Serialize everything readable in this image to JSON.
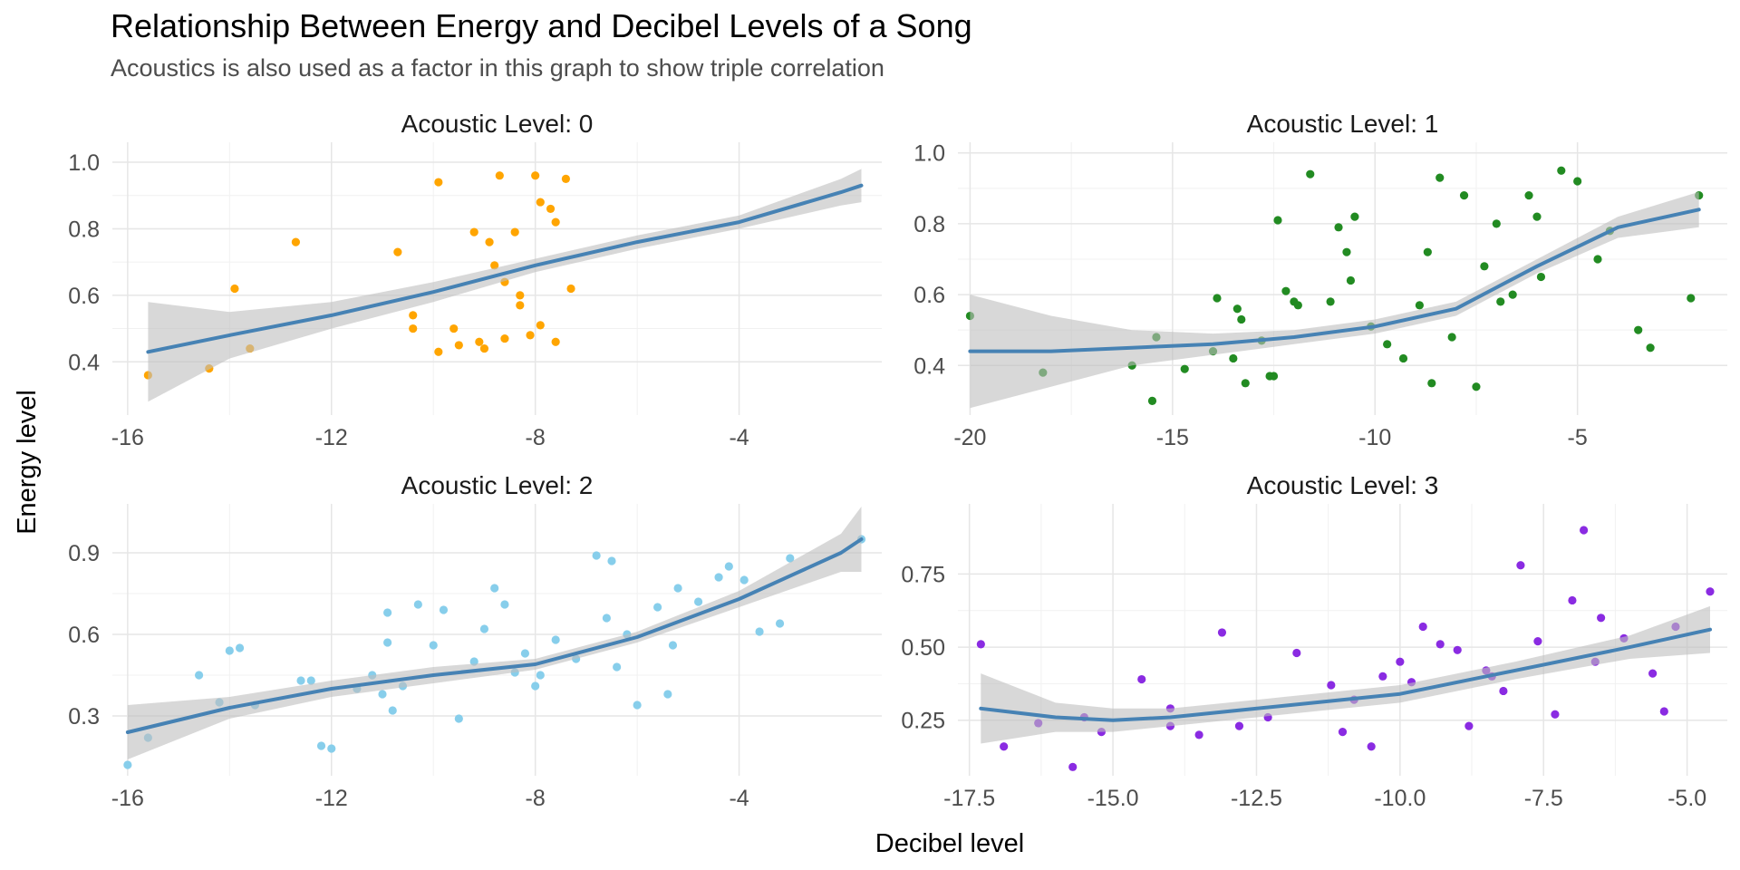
{
  "chart_data": {
    "type": "scatter",
    "title": "Relationship Between Energy and Decibel Levels of a Song",
    "subtitle": "Acoustics is also used as a factor in this graph to show triple correlation",
    "xlabel": "Decibel level",
    "ylabel": "Energy level",
    "grid": true,
    "smoother": {
      "color": "#4682b4",
      "band_color": "#bebebe"
    },
    "panels": [
      {
        "label": "Acoustic Level: 0",
        "color": "#ffa500",
        "xlim": [
          -16.3,
          -1.2
        ],
        "ylim": [
          0.24,
          1.06
        ],
        "xticks": [
          -16,
          -12,
          -8,
          -4
        ],
        "xtick_labels": [
          "-16",
          "-12",
          "-8",
          "-4"
        ],
        "yticks": [
          0.4,
          0.6,
          0.8,
          1.0
        ],
        "ytick_labels": [
          "0.4",
          "0.6",
          "0.8",
          "1.0"
        ],
        "points": [
          [
            -15.6,
            0.36
          ],
          [
            -14.4,
            0.38
          ],
          [
            -13.6,
            0.44
          ],
          [
            -13.9,
            0.62
          ],
          [
            -12.7,
            0.76
          ],
          [
            -10.7,
            0.73
          ],
          [
            -10.4,
            0.54
          ],
          [
            -10.4,
            0.5
          ],
          [
            -9.9,
            0.94
          ],
          [
            -9.9,
            0.43
          ],
          [
            -9.2,
            0.79
          ],
          [
            -9.5,
            0.45
          ],
          [
            -9.6,
            0.5
          ],
          [
            -9.1,
            0.46
          ],
          [
            -9.0,
            0.44
          ],
          [
            -8.8,
            0.69
          ],
          [
            -8.6,
            0.47
          ],
          [
            -8.4,
            0.79
          ],
          [
            -8.3,
            0.57
          ],
          [
            -8.1,
            0.48
          ],
          [
            -7.9,
            0.88
          ],
          [
            -7.6,
            0.46
          ],
          [
            -7.9,
            0.51
          ],
          [
            -8.7,
            0.96
          ],
          [
            -8.0,
            0.96
          ],
          [
            -7.4,
            0.95
          ],
          [
            -7.7,
            0.86
          ],
          [
            -7.6,
            0.82
          ],
          [
            -7.3,
            0.62
          ],
          [
            -8.6,
            0.64
          ],
          [
            -8.3,
            0.6
          ],
          [
            -8.9,
            0.76
          ]
        ],
        "smooth": [
          [
            -15.6,
            0.43
          ],
          [
            -14,
            0.48
          ],
          [
            -12,
            0.54
          ],
          [
            -10,
            0.61
          ],
          [
            -8,
            0.69
          ],
          [
            -6,
            0.76
          ],
          [
            -4,
            0.82
          ],
          [
            -2,
            0.91
          ],
          [
            -1.6,
            0.93
          ]
        ],
        "band_half_width": [
          0.15,
          0.07,
          0.04,
          0.03,
          0.02,
          0.02,
          0.02,
          0.04,
          0.05
        ]
      },
      {
        "label": "Acoustic Level: 1",
        "color": "#228b22",
        "xlim": [
          -20.3,
          -1.3
        ],
        "ylim": [
          0.26,
          1.03
        ],
        "xticks": [
          -20,
          -15,
          -10,
          -5
        ],
        "xtick_labels": [
          "-20",
          "-15",
          "-10",
          "-5"
        ],
        "yticks": [
          0.4,
          0.6,
          0.8,
          1.0
        ],
        "ytick_labels": [
          "0.4",
          "0.6",
          "0.8",
          "1.0"
        ],
        "points": [
          [
            -20.0,
            0.54
          ],
          [
            -18.2,
            0.38
          ],
          [
            -16.0,
            0.4
          ],
          [
            -15.5,
            0.3
          ],
          [
            -15.4,
            0.48
          ],
          [
            -14.7,
            0.39
          ],
          [
            -14.0,
            0.44
          ],
          [
            -13.9,
            0.59
          ],
          [
            -13.5,
            0.42
          ],
          [
            -13.4,
            0.56
          ],
          [
            -13.3,
            0.53
          ],
          [
            -13.2,
            0.35
          ],
          [
            -12.8,
            0.47
          ],
          [
            -12.6,
            0.37
          ],
          [
            -12.5,
            0.37
          ],
          [
            -12.4,
            0.81
          ],
          [
            -12.2,
            0.61
          ],
          [
            -12.0,
            0.58
          ],
          [
            -11.9,
            0.57
          ],
          [
            -11.6,
            0.94
          ],
          [
            -11.1,
            0.58
          ],
          [
            -10.9,
            0.79
          ],
          [
            -10.7,
            0.72
          ],
          [
            -10.6,
            0.64
          ],
          [
            -10.5,
            0.82
          ],
          [
            -10.1,
            0.51
          ],
          [
            -9.7,
            0.46
          ],
          [
            -9.3,
            0.42
          ],
          [
            -8.9,
            0.57
          ],
          [
            -8.7,
            0.72
          ],
          [
            -8.6,
            0.35
          ],
          [
            -8.4,
            0.93
          ],
          [
            -7.8,
            0.88
          ],
          [
            -7.5,
            0.34
          ],
          [
            -7.0,
            0.8
          ],
          [
            -6.6,
            0.6
          ],
          [
            -6.2,
            0.88
          ],
          [
            -5.9,
            0.65
          ],
          [
            -5.4,
            0.95
          ],
          [
            -5.0,
            0.92
          ],
          [
            -4.5,
            0.7
          ],
          [
            -3.5,
            0.5
          ],
          [
            -3.2,
            0.45
          ],
          [
            -2.2,
            0.59
          ],
          [
            -2.0,
            0.88
          ],
          [
            -6.9,
            0.58
          ],
          [
            -7.3,
            0.68
          ],
          [
            -8.1,
            0.48
          ],
          [
            -6.0,
            0.82
          ],
          [
            -4.2,
            0.78
          ]
        ],
        "smooth": [
          [
            -20,
            0.44
          ],
          [
            -18,
            0.44
          ],
          [
            -16,
            0.45
          ],
          [
            -14,
            0.46
          ],
          [
            -12,
            0.48
          ],
          [
            -10,
            0.51
          ],
          [
            -8,
            0.56
          ],
          [
            -6,
            0.68
          ],
          [
            -4,
            0.79
          ],
          [
            -2,
            0.84
          ]
        ],
        "band_half_width": [
          0.16,
          0.1,
          0.05,
          0.03,
          0.02,
          0.02,
          0.02,
          0.02,
          0.03,
          0.05
        ]
      },
      {
        "label": "Acoustic Level: 2",
        "color": "#87ceeb",
        "xlim": [
          -16.3,
          -1.2
        ],
        "ylim": [
          0.08,
          1.08
        ],
        "xticks": [
          -16,
          -12,
          -8,
          -4
        ],
        "xtick_labels": [
          "-16",
          "-12",
          "-8",
          "-4"
        ],
        "yticks": [
          0.3,
          0.6,
          0.9
        ],
        "ytick_labels": [
          "0.3",
          "0.6",
          "0.9"
        ],
        "points": [
          [
            -16.0,
            0.12
          ],
          [
            -15.6,
            0.22
          ],
          [
            -14.6,
            0.45
          ],
          [
            -14.2,
            0.35
          ],
          [
            -14.0,
            0.54
          ],
          [
            -13.8,
            0.55
          ],
          [
            -13.5,
            0.34
          ],
          [
            -12.6,
            0.43
          ],
          [
            -12.4,
            0.43
          ],
          [
            -12.2,
            0.19
          ],
          [
            -12.0,
            0.18
          ],
          [
            -11.5,
            0.4
          ],
          [
            -11.2,
            0.45
          ],
          [
            -10.9,
            0.57
          ],
          [
            -10.9,
            0.68
          ],
          [
            -10.8,
            0.32
          ],
          [
            -10.6,
            0.41
          ],
          [
            -10.3,
            0.71
          ],
          [
            -10.0,
            0.56
          ],
          [
            -9.8,
            0.69
          ],
          [
            -9.5,
            0.29
          ],
          [
            -9.0,
            0.62
          ],
          [
            -8.8,
            0.77
          ],
          [
            -8.6,
            0.71
          ],
          [
            -8.4,
            0.46
          ],
          [
            -8.2,
            0.53
          ],
          [
            -8.0,
            0.41
          ],
          [
            -7.6,
            0.58
          ],
          [
            -7.2,
            0.51
          ],
          [
            -6.8,
            0.89
          ],
          [
            -6.6,
            0.66
          ],
          [
            -6.5,
            0.87
          ],
          [
            -6.2,
            0.6
          ],
          [
            -6.0,
            0.34
          ],
          [
            -5.6,
            0.7
          ],
          [
            -5.4,
            0.38
          ],
          [
            -5.2,
            0.77
          ],
          [
            -4.8,
            0.72
          ],
          [
            -4.4,
            0.81
          ],
          [
            -4.2,
            0.85
          ],
          [
            -3.9,
            0.8
          ],
          [
            -3.6,
            0.61
          ],
          [
            -3.2,
            0.64
          ],
          [
            -3.0,
            0.88
          ],
          [
            -1.6,
            0.95
          ],
          [
            -9.2,
            0.5
          ],
          [
            -7.9,
            0.45
          ],
          [
            -6.4,
            0.48
          ],
          [
            -5.3,
            0.56
          ],
          [
            -11.0,
            0.38
          ]
        ],
        "smooth": [
          [
            -16,
            0.24
          ],
          [
            -14,
            0.33
          ],
          [
            -12,
            0.4
          ],
          [
            -10,
            0.45
          ],
          [
            -8,
            0.49
          ],
          [
            -6,
            0.59
          ],
          [
            -4,
            0.73
          ],
          [
            -2,
            0.9
          ],
          [
            -1.6,
            0.95
          ]
        ],
        "band_half_width": [
          0.1,
          0.04,
          0.03,
          0.03,
          0.02,
          0.02,
          0.03,
          0.07,
          0.12
        ]
      },
      {
        "label": "Acoustic Level: 3",
        "color": "#8a2be2",
        "xlim": [
          -17.7,
          -4.3
        ],
        "ylim": [
          0.06,
          0.99
        ],
        "xticks": [
          -17.5,
          -15.0,
          -12.5,
          -10.0,
          -7.5,
          -5.0
        ],
        "xtick_labels": [
          "-17.5",
          "-15.0",
          "-12.5",
          "-10.0",
          "-7.5",
          "-5.0"
        ],
        "yticks": [
          0.25,
          0.5,
          0.75
        ],
        "ytick_labels": [
          "0.25",
          "0.50",
          "0.75"
        ],
        "points": [
          [
            -17.3,
            0.51
          ],
          [
            -16.9,
            0.16
          ],
          [
            -16.3,
            0.24
          ],
          [
            -15.7,
            0.09
          ],
          [
            -15.5,
            0.26
          ],
          [
            -15.2,
            0.21
          ],
          [
            -14.5,
            0.39
          ],
          [
            -14.0,
            0.29
          ],
          [
            -14.0,
            0.23
          ],
          [
            -13.5,
            0.2
          ],
          [
            -13.1,
            0.55
          ],
          [
            -12.8,
            0.23
          ],
          [
            -12.3,
            0.26
          ],
          [
            -11.8,
            0.48
          ],
          [
            -11.2,
            0.37
          ],
          [
            -11.0,
            0.21
          ],
          [
            -10.8,
            0.32
          ],
          [
            -10.5,
            0.16
          ],
          [
            -10.3,
            0.4
          ],
          [
            -10.0,
            0.45
          ],
          [
            -9.8,
            0.38
          ],
          [
            -9.6,
            0.57
          ],
          [
            -9.3,
            0.51
          ],
          [
            -9.0,
            0.49
          ],
          [
            -8.8,
            0.23
          ],
          [
            -8.5,
            0.42
          ],
          [
            -8.2,
            0.35
          ],
          [
            -7.9,
            0.78
          ],
          [
            -7.6,
            0.52
          ],
          [
            -7.3,
            0.27
          ],
          [
            -7.0,
            0.66
          ],
          [
            -6.8,
            0.9
          ],
          [
            -6.5,
            0.6
          ],
          [
            -6.1,
            0.53
          ],
          [
            -5.6,
            0.41
          ],
          [
            -5.4,
            0.28
          ],
          [
            -5.2,
            0.57
          ],
          [
            -4.6,
            0.69
          ],
          [
            -8.4,
            0.4
          ],
          [
            -6.6,
            0.45
          ]
        ],
        "smooth": [
          [
            -17.3,
            0.29
          ],
          [
            -16,
            0.26
          ],
          [
            -15,
            0.25
          ],
          [
            -14,
            0.26
          ],
          [
            -13,
            0.28
          ],
          [
            -12,
            0.3
          ],
          [
            -10,
            0.34
          ],
          [
            -8,
            0.42
          ],
          [
            -6,
            0.5
          ],
          [
            -4.6,
            0.56
          ]
        ],
        "band_half_width": [
          0.12,
          0.05,
          0.04,
          0.03,
          0.03,
          0.03,
          0.03,
          0.03,
          0.04,
          0.08
        ]
      }
    ]
  }
}
